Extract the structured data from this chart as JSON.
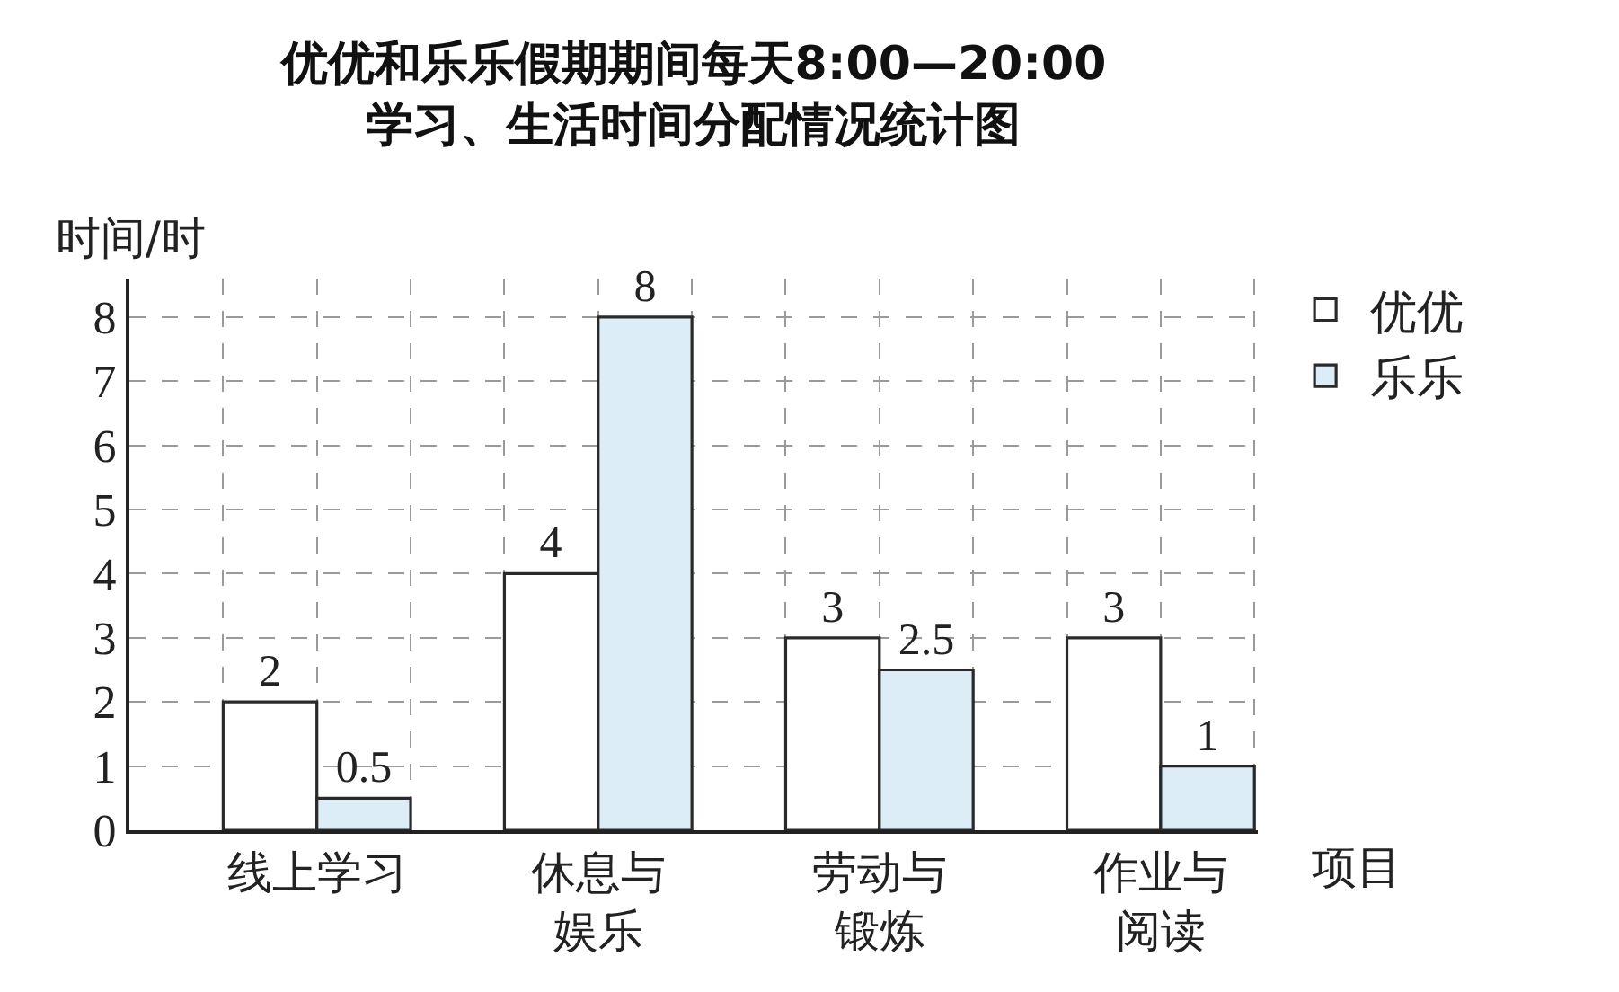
{
  "chart_data": {
    "type": "bar",
    "title": "优优和乐乐假期期间每天8:00—20:00\n学习、生活时间分配情况统计图",
    "ylabel": "时间/时",
    "xlabel": "项目",
    "categories": [
      "线上学习",
      "休息与娱乐",
      "劳动与锻炼",
      "作业与阅读"
    ],
    "series": [
      {
        "name": "优优",
        "color": "#ffffff",
        "values": [
          2,
          4,
          3,
          3
        ]
      },
      {
        "name": "乐乐",
        "color": "#dcedf8",
        "values": [
          0.5,
          8,
          2.5,
          1
        ]
      }
    ],
    "ylim": [
      0,
      8.6
    ],
    "yticks": [
      0,
      1,
      2,
      3,
      4,
      5,
      6,
      7,
      8
    ],
    "grid": true,
    "legend": "top right",
    "data_labels": true
  }
}
